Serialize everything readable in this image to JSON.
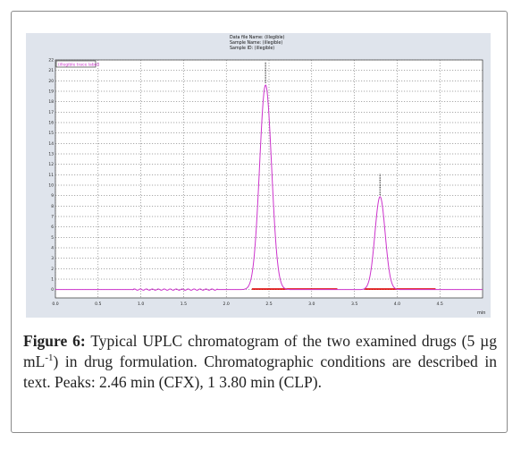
{
  "chart_data": {
    "type": "line",
    "header_lines": [
      "Data file Name: (illegible)",
      "Sample Name: (illegible)",
      "Sample ID: (illegible)"
    ],
    "legend": "(illegible trace label)",
    "xlabel": "min",
    "xlim": [
      0,
      5.0
    ],
    "ylim": [
      0,
      22
    ],
    "x_ticks": [
      "0.0",
      "0.5",
      "1.0",
      "1.5",
      "2.0",
      "2.5",
      "3.0",
      "3.5",
      "4.0",
      "4.5"
    ],
    "y_ticks": [
      "0",
      "1",
      "2",
      "3",
      "4",
      "5",
      "6",
      "7",
      "8",
      "9",
      "10",
      "11",
      "12",
      "13",
      "14",
      "15",
      "16",
      "17",
      "18",
      "19",
      "20",
      "21",
      "22"
    ],
    "peaks": [
      {
        "x": 2.46,
        "height": 19.6,
        "width": 0.07
      },
      {
        "x": 3.8,
        "height": 8.9,
        "width": 0.06
      }
    ],
    "baseline": 0,
    "colors": {
      "trace": "#cc33cc",
      "integration": "#dd0000",
      "grid": "#555555",
      "plot_bg": "#d9dfe8"
    }
  },
  "caption": {
    "label": "Figure 6:",
    "part1": " Typical UPLC chromatogram of the two examined drugs (5 µg mL",
    "sup": "-1",
    "part2": ") in drug formulation. Chromatographic conditions are described in text. Peaks: 2.46 min (CFX), 1 3.80 min (CLP)."
  }
}
